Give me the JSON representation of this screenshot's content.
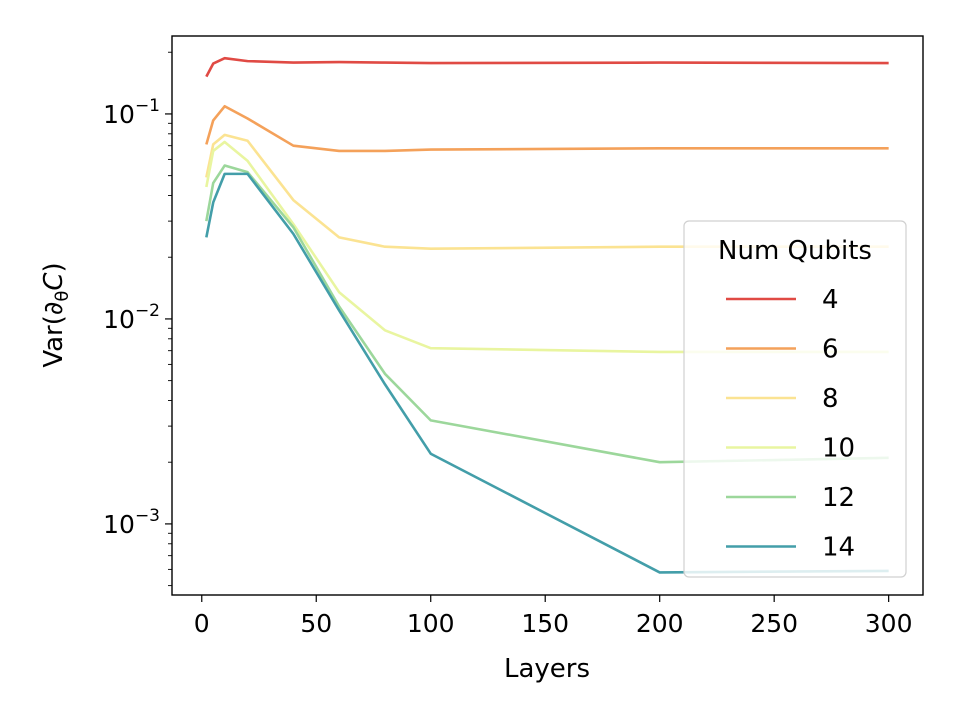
{
  "chart_data": {
    "type": "line",
    "title": "",
    "xlabel": "Layers",
    "ylabel": "Var(∂θC)",
    "yscale": "log",
    "xlim": [
      -13,
      315
    ],
    "ylim": [
      0.00045,
      0.24
    ],
    "x_ticks": [
      0,
      50,
      100,
      150,
      200,
      250,
      300
    ],
    "x_tick_labels": [
      "0",
      "50",
      "100",
      "150",
      "200",
      "250",
      "300"
    ],
    "y_ticks": [
      {
        "value": 0.1,
        "base": "10",
        "exp": "−1"
      },
      {
        "value": 0.01,
        "base": "10",
        "exp": "−2"
      },
      {
        "value": 0.001,
        "base": "10",
        "exp": "−3"
      }
    ],
    "grid": false,
    "legend": {
      "title": "Num Qubits",
      "placement": "center-right"
    },
    "x": [
      2,
      5,
      10,
      20,
      40,
      60,
      80,
      100,
      200,
      300
    ],
    "series": [
      {
        "name": "4",
        "color": "#e04a44",
        "values": [
          0.152,
          0.176,
          0.187,
          0.181,
          0.178,
          0.179,
          0.178,
          0.177,
          0.178,
          0.177
        ]
      },
      {
        "name": "6",
        "color": "#f4a15a",
        "values": [
          0.071,
          0.093,
          0.109,
          0.095,
          0.07,
          0.066,
          0.066,
          0.067,
          0.068,
          0.068
        ]
      },
      {
        "name": "8",
        "color": "#fbe392",
        "values": [
          0.049,
          0.071,
          0.079,
          0.074,
          0.038,
          0.025,
          0.0225,
          0.022,
          0.0225,
          0.0225
        ]
      },
      {
        "name": "10",
        "color": "#e9f5a0",
        "values": [
          0.044,
          0.066,
          0.073,
          0.059,
          0.029,
          0.0135,
          0.0088,
          0.0072,
          0.0069,
          0.0069
        ]
      },
      {
        "name": "12",
        "color": "#9cd79b",
        "values": [
          0.03,
          0.046,
          0.056,
          0.052,
          0.028,
          0.0115,
          0.0054,
          0.0032,
          0.002,
          0.0021
        ]
      },
      {
        "name": "14",
        "color": "#439ea9",
        "values": [
          0.025,
          0.037,
          0.051,
          0.051,
          0.026,
          0.011,
          0.0048,
          0.0022,
          0.00058,
          0.00059
        ]
      }
    ]
  }
}
